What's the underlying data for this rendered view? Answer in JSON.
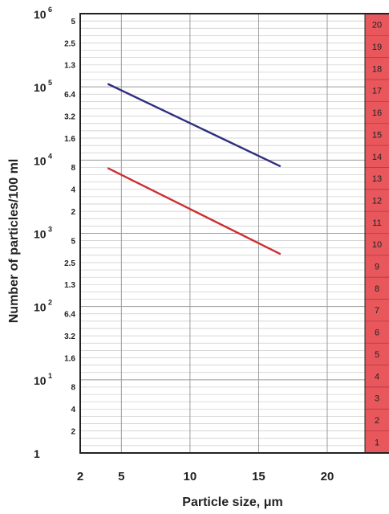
{
  "chart_data": {
    "type": "line",
    "title": "",
    "xlabel": "Particle size, μm",
    "ylabel": "Number of particles/100 ml",
    "x_ticks": [
      "2",
      "5",
      "10",
      "15",
      "20"
    ],
    "xlim": [
      2,
      24.5
    ],
    "y_scale": "log",
    "ylim": [
      1,
      1000000
    ],
    "y_major_ticks": [
      {
        "value": 1,
        "label": "1",
        "exp": ""
      },
      {
        "value": 10,
        "label": "10",
        "exp": "1"
      },
      {
        "value": 100,
        "label": "10",
        "exp": "2"
      },
      {
        "value": 1000,
        "label": "10",
        "exp": "3"
      },
      {
        "value": 10000,
        "label": "10",
        "exp": "4"
      },
      {
        "value": 100000,
        "label": "10",
        "exp": "5"
      },
      {
        "value": 1000000,
        "label": "10",
        "exp": "6"
      }
    ],
    "y_minor_labels": [
      "2",
      "4",
      "8",
      "1.6",
      "3.2",
      "6.4",
      "1.3",
      "2.5",
      "5",
      "2",
      "4",
      "8",
      "1.6",
      "3.2",
      "6.4",
      "1.3",
      "2.5",
      "5"
    ],
    "code_scale": [
      "1",
      "2",
      "3",
      "4",
      "5",
      "6",
      "7",
      "8",
      "9",
      "10",
      "11",
      "12",
      "13",
      "14",
      "15",
      "16",
      "17",
      "18",
      "19",
      "20"
    ],
    "code_scale_color": "#e8575c",
    "series": [
      {
        "color": "#2e2f7f",
        "x": [
          4,
          16.6
        ],
        "y": [
          110000,
          8200
        ]
      },
      {
        "color": "#cc2f33",
        "x": [
          4,
          16.6
        ],
        "y": [
          7800,
          520
        ]
      }
    ]
  }
}
